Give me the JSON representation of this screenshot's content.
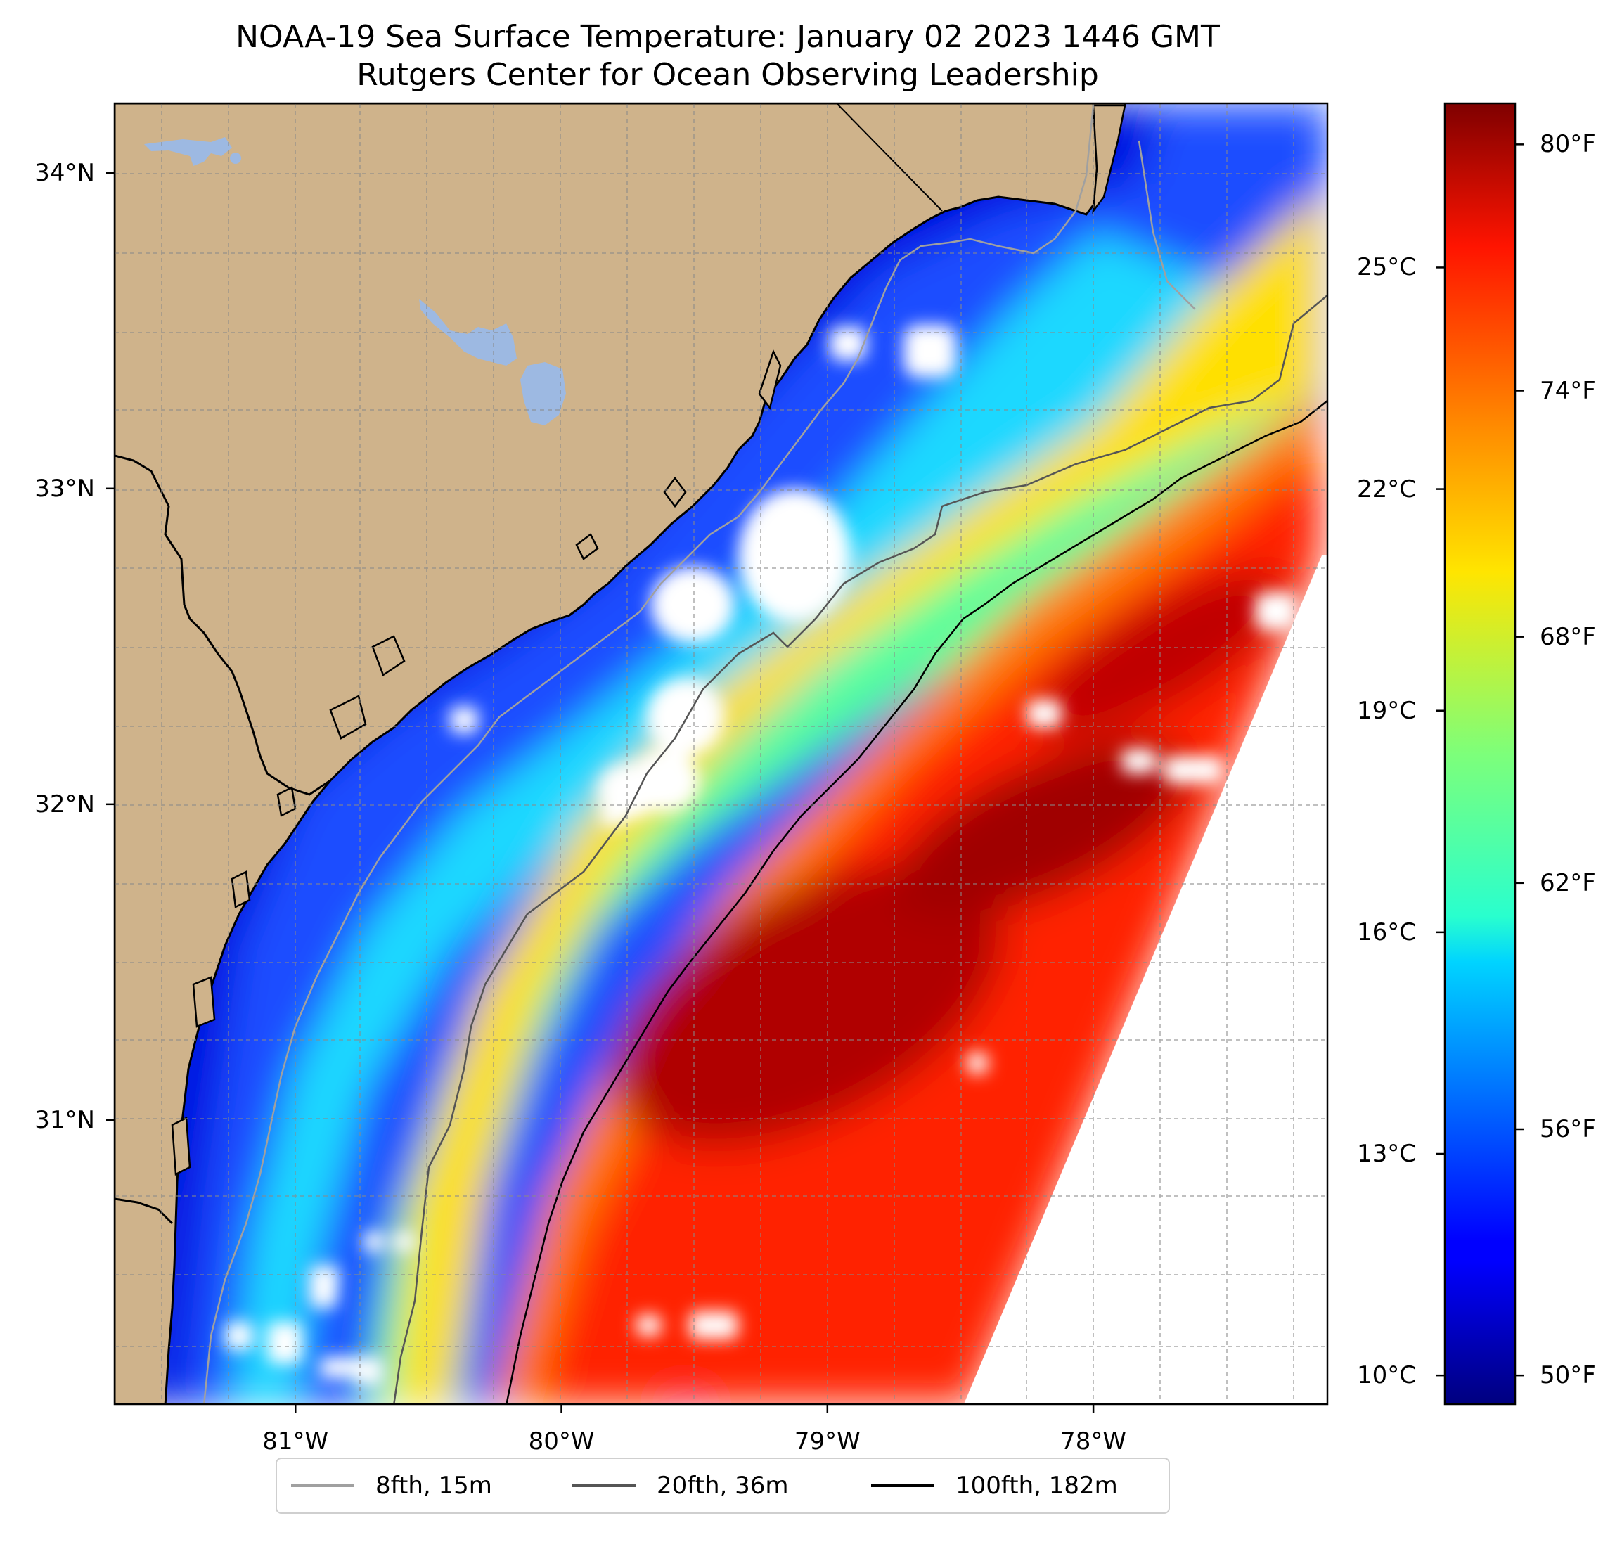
{
  "title": {
    "line1": "NOAA-19 Sea Surface Temperature: January 02 2023 1446 GMT",
    "line2": "Rutgers Center for Ocean Observing Leadership"
  },
  "map": {
    "lon_range": [
      -81.68,
      -77.12
    ],
    "lat_range": [
      30.1,
      34.22
    ],
    "lat_ticks": [
      {
        "value": 34,
        "label": "34°N"
      },
      {
        "value": 33,
        "label": "33°N"
      },
      {
        "value": 32,
        "label": "32°N"
      },
      {
        "value": 31,
        "label": "31°N"
      }
    ],
    "lon_ticks": [
      {
        "value": -81,
        "label": "81°W"
      },
      {
        "value": -80,
        "label": "80°W"
      },
      {
        "value": -79,
        "label": "79°W"
      },
      {
        "value": -78,
        "label": "78°W"
      }
    ],
    "gridlines": true,
    "land_color": "#cfb38b",
    "lake_color": "#9db9e2",
    "nodata_color": "#ffffff"
  },
  "colorbar": {
    "colormap": "jet",
    "range_f": [
      49.3,
      81.0
    ],
    "f_ticks": [
      {
        "value": 50,
        "label": "50°F"
      },
      {
        "value": 56,
        "label": "56°F"
      },
      {
        "value": 62,
        "label": "62°F"
      },
      {
        "value": 68,
        "label": "68°F"
      },
      {
        "value": 74,
        "label": "74°F"
      },
      {
        "value": 80,
        "label": "80°F"
      }
    ],
    "c_ticks": [
      {
        "value": 10,
        "label": "10°C"
      },
      {
        "value": 13,
        "label": "13°C"
      },
      {
        "value": 16,
        "label": "16°C"
      },
      {
        "value": 19,
        "label": "19°C"
      },
      {
        "value": 22,
        "label": "22°C"
      },
      {
        "value": 25,
        "label": "25°C"
      }
    ]
  },
  "legend": {
    "placement": "bottom-center",
    "items": [
      {
        "label": "8fth, 15m",
        "color": "#a0a0a0"
      },
      {
        "label": "20fth, 36m",
        "color": "#555555"
      },
      {
        "label": "100fth, 182m",
        "color": "#000000"
      }
    ]
  }
}
